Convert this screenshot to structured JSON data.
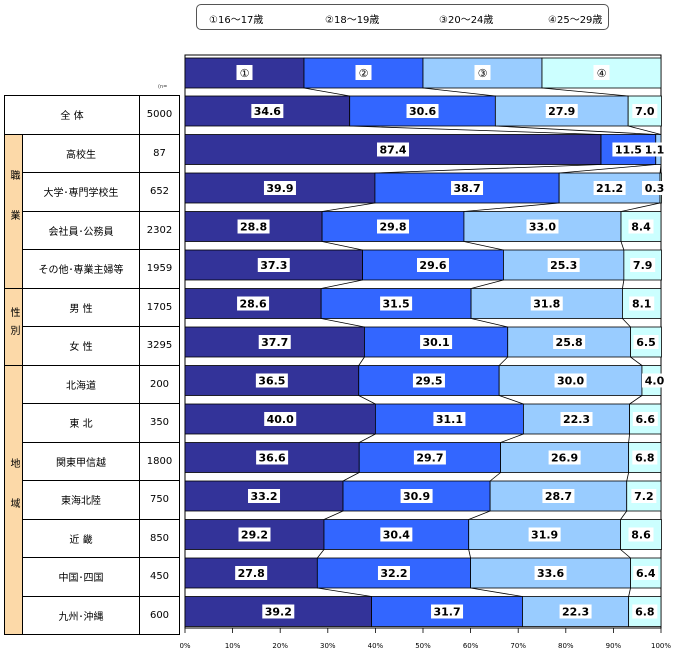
{
  "legend": {
    "items": [
      "①16～17歳",
      "②18～19歳",
      "③20～24歳",
      "④25～29歳"
    ]
  },
  "n_header": "(n=",
  "header_labels": [
    "①",
    "②",
    "③",
    "④"
  ],
  "groups": [
    {
      "label": "",
      "rows": [
        {
          "name": "全 体",
          "n": "5000"
        }
      ]
    },
    {
      "label": "職業",
      "rows": [
        {
          "name": "高校生",
          "n": "87"
        },
        {
          "name": "大学･専門学校生",
          "n": "652"
        },
        {
          "name": "会社員･公務員",
          "n": "2302"
        },
        {
          "name": "その他･専業主婦等",
          "n": "1959"
        }
      ]
    },
    {
      "label": "性別",
      "rows": [
        {
          "name": "男 性",
          "n": "1705"
        },
        {
          "name": "女 性",
          "n": "3295"
        }
      ]
    },
    {
      "label": "地域",
      "rows": [
        {
          "name": "北海道",
          "n": "200"
        },
        {
          "name": "東 北",
          "n": "350"
        },
        {
          "name": "関東甲信越",
          "n": "1800"
        },
        {
          "name": "東海北陸",
          "n": "750"
        },
        {
          "name": "近 畿",
          "n": "850"
        },
        {
          "name": "中国･四国",
          "n": "450"
        },
        {
          "name": "九州･沖縄",
          "n": "600"
        }
      ]
    }
  ],
  "chart_data": {
    "type": "bar",
    "orientation": "horizontal",
    "stacked": "100%",
    "categories": [
      "全 体",
      "高校生",
      "大学･専門学校生",
      "会社員･公務員",
      "その他･専業主婦等",
      "男 性",
      "女 性",
      "北海道",
      "東 北",
      "関東甲信越",
      "東海北陸",
      "近 畿",
      "中国･四国",
      "九州･沖縄"
    ],
    "series": [
      {
        "name": "①16～17歳",
        "color": "#333399",
        "values": [
          34.6,
          87.4,
          39.9,
          28.8,
          37.3,
          28.6,
          37.7,
          36.5,
          40.0,
          36.6,
          33.2,
          29.2,
          27.8,
          39.2
        ]
      },
      {
        "name": "②18～19歳",
        "color": "#3366ff",
        "values": [
          30.6,
          11.5,
          38.7,
          29.8,
          29.6,
          31.5,
          30.1,
          29.5,
          31.1,
          29.7,
          30.9,
          30.4,
          32.2,
          31.7
        ]
      },
      {
        "name": "③20～24歳",
        "color": "#99ccff",
        "values": [
          27.9,
          1.1,
          21.2,
          33.0,
          25.3,
          31.8,
          25.8,
          30.0,
          22.3,
          26.9,
          28.7,
          31.9,
          33.6,
          22.3
        ]
      },
      {
        "name": "④25～29歳",
        "color": "#ccffff",
        "values": [
          7.0,
          0.0,
          0.3,
          8.4,
          7.9,
          8.1,
          6.5,
          4.0,
          6.6,
          6.8,
          7.2,
          8.6,
          6.4,
          6.8
        ]
      }
    ],
    "value_labels": [
      [
        "34.6",
        "30.6",
        "27.9",
        "7.0"
      ],
      [
        "87.4",
        "11.5",
        "1.1",
        ""
      ],
      [
        "39.9",
        "38.7",
        "21.2",
        "0.3"
      ],
      [
        "28.8",
        "29.8",
        "33.0",
        "8.4"
      ],
      [
        "37.3",
        "29.6",
        "25.3",
        "7.9"
      ],
      [
        "28.6",
        "31.5",
        "31.8",
        "8.1"
      ],
      [
        "37.7",
        "30.1",
        "25.8",
        "6.5"
      ],
      [
        "36.5",
        "29.5",
        "30.0",
        "4.0"
      ],
      [
        "40.0",
        "31.1",
        "22.3",
        "6.6"
      ],
      [
        "36.6",
        "29.7",
        "26.9",
        "6.8"
      ],
      [
        "33.2",
        "30.9",
        "28.7",
        "7.2"
      ],
      [
        "29.2",
        "30.4",
        "31.9",
        "8.6"
      ],
      [
        "27.8",
        "32.2",
        "33.6",
        "6.4"
      ],
      [
        "39.2",
        "31.7",
        "22.3",
        "6.8"
      ]
    ],
    "xlim": [
      0,
      100
    ],
    "xticks": [
      "0%",
      "10%",
      "20%",
      "30%",
      "40%",
      "50%",
      "60%",
      "70%",
      "80%",
      "90%",
      "100%"
    ]
  }
}
